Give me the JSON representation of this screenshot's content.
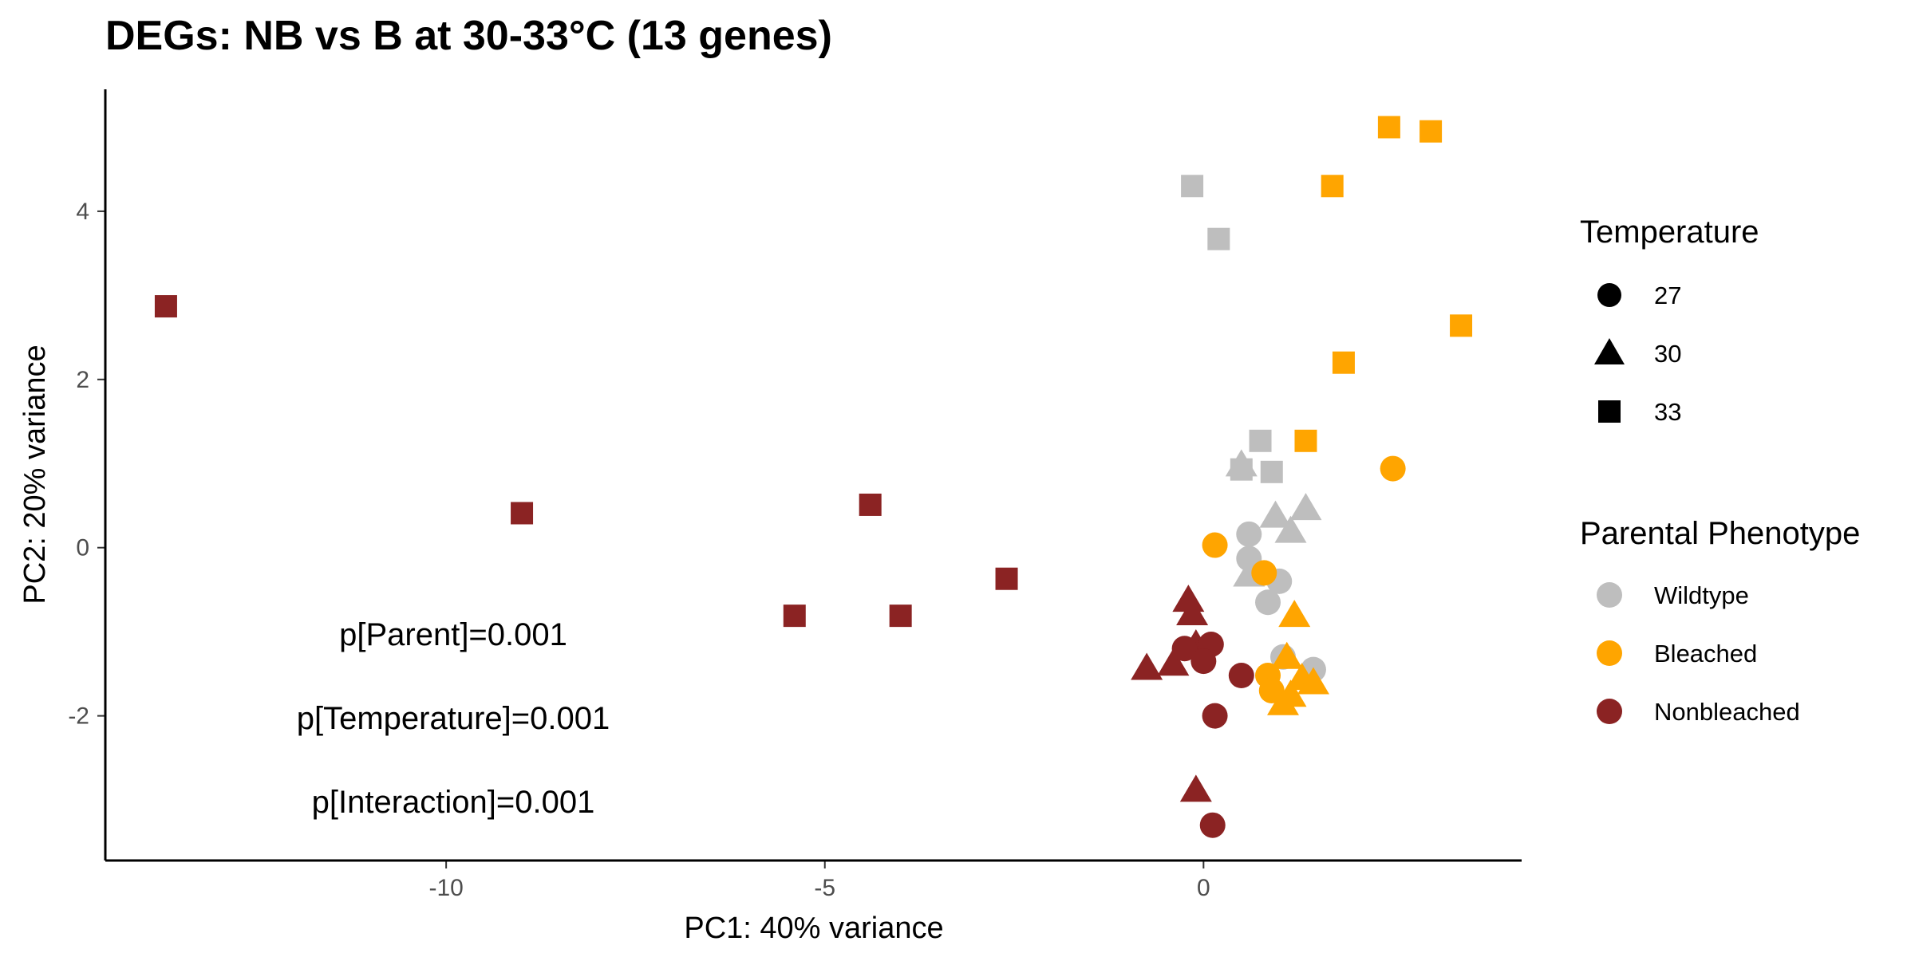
{
  "chart_data": {
    "type": "scatter",
    "title": "DEGs: NB vs B at 30-33°C (13 genes)",
    "xlabel": "PC1: 40% variance",
    "ylabel": "PC2: 20% variance",
    "xlim": [
      -14.5,
      4.2
    ],
    "ylim": [
      -3.72,
      5.45
    ],
    "xticks": [
      -10,
      -5,
      0
    ],
    "yticks": [
      -2,
      0,
      2,
      4
    ],
    "annotations": [
      "p[Parent]=0.001",
      "p[Temperature]=0.001",
      "p[Interaction]=0.001"
    ],
    "legend": {
      "shape_title": "Temperature",
      "shapes": [
        {
          "label": "27",
          "shape": "circle"
        },
        {
          "label": "30",
          "shape": "triangle"
        },
        {
          "label": "33",
          "shape": "square"
        }
      ],
      "color_title": "Parental Phenotype",
      "colors": [
        {
          "label": "Wildtype",
          "color": "#BEBEBE"
        },
        {
          "label": "Bleached",
          "color": "#FFA500"
        },
        {
          "label": "Nonbleached",
          "color": "#8B2323"
        }
      ]
    },
    "points": [
      {
        "x": -13.7,
        "y": 2.87,
        "phenotype": "Nonbleached",
        "temp": "33"
      },
      {
        "x": -9.0,
        "y": 0.41,
        "phenotype": "Nonbleached",
        "temp": "33"
      },
      {
        "x": -4.4,
        "y": 0.51,
        "phenotype": "Nonbleached",
        "temp": "33"
      },
      {
        "x": -2.6,
        "y": -0.37,
        "phenotype": "Nonbleached",
        "temp": "33"
      },
      {
        "x": -5.4,
        "y": -0.81,
        "phenotype": "Nonbleached",
        "temp": "33"
      },
      {
        "x": -4.0,
        "y": -0.81,
        "phenotype": "Nonbleached",
        "temp": "33"
      },
      {
        "x": -0.2,
        "y": -0.62,
        "phenotype": "Nonbleached",
        "temp": "30"
      },
      {
        "x": -0.15,
        "y": -0.78,
        "phenotype": "Nonbleached",
        "temp": "30"
      },
      {
        "x": -0.75,
        "y": -1.43,
        "phenotype": "Nonbleached",
        "temp": "30"
      },
      {
        "x": -0.4,
        "y": -1.38,
        "phenotype": "Nonbleached",
        "temp": "30"
      },
      {
        "x": -0.1,
        "y": -1.15,
        "phenotype": "Nonbleached",
        "temp": "30"
      },
      {
        "x": -0.1,
        "y": -2.88,
        "phenotype": "Nonbleached",
        "temp": "30"
      },
      {
        "x": -0.25,
        "y": -1.2,
        "phenotype": "Nonbleached",
        "temp": "27"
      },
      {
        "x": 0.1,
        "y": -1.15,
        "phenotype": "Nonbleached",
        "temp": "27"
      },
      {
        "x": 0.0,
        "y": -1.35,
        "phenotype": "Nonbleached",
        "temp": "27"
      },
      {
        "x": 0.5,
        "y": -1.52,
        "phenotype": "Nonbleached",
        "temp": "27"
      },
      {
        "x": 0.15,
        "y": -2.0,
        "phenotype": "Nonbleached",
        "temp": "27"
      },
      {
        "x": 0.12,
        "y": -3.3,
        "phenotype": "Nonbleached",
        "temp": "27"
      },
      {
        "x": -0.15,
        "y": 4.3,
        "phenotype": "Wildtype",
        "temp": "33"
      },
      {
        "x": 0.2,
        "y": 3.67,
        "phenotype": "Wildtype",
        "temp": "33"
      },
      {
        "x": 0.75,
        "y": 1.27,
        "phenotype": "Wildtype",
        "temp": "33"
      },
      {
        "x": 0.5,
        "y": 0.93,
        "phenotype": "Wildtype",
        "temp": "33"
      },
      {
        "x": 0.9,
        "y": 0.9,
        "phenotype": "Wildtype",
        "temp": "33"
      },
      {
        "x": 0.5,
        "y": 0.99,
        "phenotype": "Wildtype",
        "temp": "30"
      },
      {
        "x": 0.95,
        "y": 0.38,
        "phenotype": "Wildtype",
        "temp": "30"
      },
      {
        "x": 1.15,
        "y": 0.2,
        "phenotype": "Wildtype",
        "temp": "30"
      },
      {
        "x": 1.35,
        "y": 0.47,
        "phenotype": "Wildtype",
        "temp": "30"
      },
      {
        "x": 0.6,
        "y": -0.32,
        "phenotype": "Wildtype",
        "temp": "30"
      },
      {
        "x": 0.6,
        "y": 0.16,
        "phenotype": "Wildtype",
        "temp": "27"
      },
      {
        "x": 0.6,
        "y": -0.13,
        "phenotype": "Wildtype",
        "temp": "27"
      },
      {
        "x": 1.0,
        "y": -0.4,
        "phenotype": "Wildtype",
        "temp": "27"
      },
      {
        "x": 0.85,
        "y": -0.65,
        "phenotype": "Wildtype",
        "temp": "27"
      },
      {
        "x": 1.05,
        "y": -1.3,
        "phenotype": "Wildtype",
        "temp": "27"
      },
      {
        "x": 1.45,
        "y": -1.45,
        "phenotype": "Wildtype",
        "temp": "27"
      },
      {
        "x": 2.45,
        "y": 5.0,
        "phenotype": "Bleached",
        "temp": "33"
      },
      {
        "x": 3.0,
        "y": 4.95,
        "phenotype": "Bleached",
        "temp": "33"
      },
      {
        "x": 1.7,
        "y": 4.3,
        "phenotype": "Bleached",
        "temp": "33"
      },
      {
        "x": 3.4,
        "y": 2.64,
        "phenotype": "Bleached",
        "temp": "33"
      },
      {
        "x": 1.85,
        "y": 2.2,
        "phenotype": "Bleached",
        "temp": "33"
      },
      {
        "x": 1.35,
        "y": 1.27,
        "phenotype": "Bleached",
        "temp": "33"
      },
      {
        "x": 1.2,
        "y": -0.8,
        "phenotype": "Bleached",
        "temp": "30"
      },
      {
        "x": 1.1,
        "y": -1.3,
        "phenotype": "Bleached",
        "temp": "30"
      },
      {
        "x": 1.3,
        "y": -1.55,
        "phenotype": "Bleached",
        "temp": "30"
      },
      {
        "x": 1.45,
        "y": -1.6,
        "phenotype": "Bleached",
        "temp": "30"
      },
      {
        "x": 1.05,
        "y": -1.85,
        "phenotype": "Bleached",
        "temp": "30"
      },
      {
        "x": 1.15,
        "y": -1.75,
        "phenotype": "Bleached",
        "temp": "30"
      },
      {
        "x": 2.5,
        "y": 0.94,
        "phenotype": "Bleached",
        "temp": "27"
      },
      {
        "x": 0.15,
        "y": 0.03,
        "phenotype": "Bleached",
        "temp": "27"
      },
      {
        "x": 0.8,
        "y": -0.3,
        "phenotype": "Bleached",
        "temp": "27"
      },
      {
        "x": 0.85,
        "y": -1.52,
        "phenotype": "Bleached",
        "temp": "27"
      },
      {
        "x": 0.9,
        "y": -1.7,
        "phenotype": "Bleached",
        "temp": "27"
      }
    ]
  }
}
